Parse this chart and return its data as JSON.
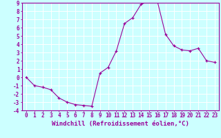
{
  "xlabel": "Windchill (Refroidissement éolien,°C)",
  "ylabel": "",
  "x": [
    0,
    1,
    2,
    3,
    4,
    5,
    6,
    7,
    8,
    9,
    10,
    11,
    12,
    13,
    14,
    15,
    16,
    17,
    18,
    19,
    20,
    21,
    22,
    23
  ],
  "y": [
    0,
    -1,
    -1.2,
    -1.5,
    -2.5,
    -3,
    -3.3,
    -3.4,
    -3.5,
    0.5,
    1.2,
    3.2,
    6.5,
    7.2,
    8.8,
    9.2,
    9.2,
    5.2,
    3.8,
    3.3,
    3.2,
    3.5,
    2.0,
    1.8
  ],
  "ylim": [
    -4,
    9
  ],
  "xlim": [
    -0.5,
    23.5
  ],
  "line_color": "#990099",
  "marker": "+",
  "bg_color": "#ccffff",
  "grid_color": "#ffffff",
  "tick_color": "#990099",
  "label_color": "#990099",
  "spine_color": "#990099",
  "fontsize_ticks": 5.5,
  "fontsize_xlabel": 6.5
}
